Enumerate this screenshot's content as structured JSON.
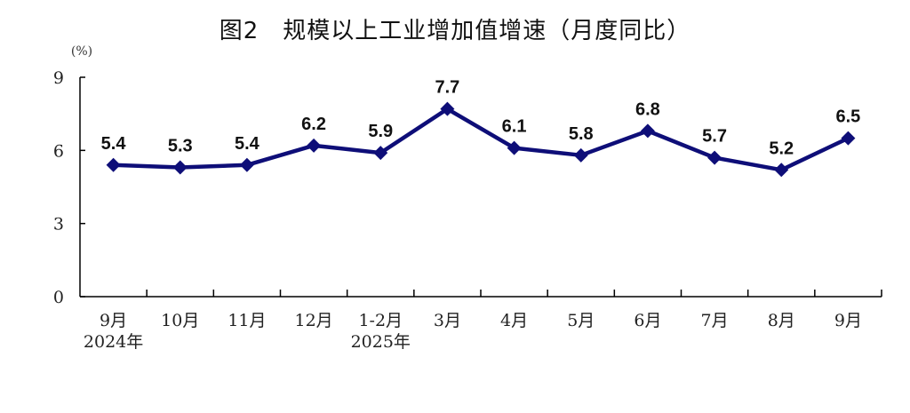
{
  "chart_data": {
    "type": "line",
    "title": "图2　规模以上工业增加值增速（月度同比）",
    "ylabel": "(%)",
    "xlabel": "",
    "ylim": [
      0,
      9
    ],
    "yticks": [
      "0",
      "3",
      "6",
      "9"
    ],
    "grid": false,
    "categories": [
      [
        "9月",
        "2024年"
      ],
      [
        "10月"
      ],
      [
        "11月"
      ],
      [
        "12月"
      ],
      [
        "1-2月",
        "2025年"
      ],
      [
        "3月"
      ],
      [
        "4月"
      ],
      [
        "5月"
      ],
      [
        "6月"
      ],
      [
        "7月"
      ],
      [
        "8月"
      ],
      [
        "9月"
      ]
    ],
    "series": [
      {
        "values": [
          5.4,
          5.3,
          5.4,
          6.2,
          5.9,
          7.7,
          6.1,
          5.8,
          6.8,
          5.7,
          5.2,
          6.5
        ],
        "labels": [
          "5.4",
          "5.3",
          "5.4",
          "6.2",
          "5.9",
          "7.7",
          "6.1",
          "5.8",
          "6.8",
          "5.7",
          "5.2",
          "6.5"
        ],
        "color": "#0e0e78",
        "marker": "diamond"
      }
    ]
  }
}
